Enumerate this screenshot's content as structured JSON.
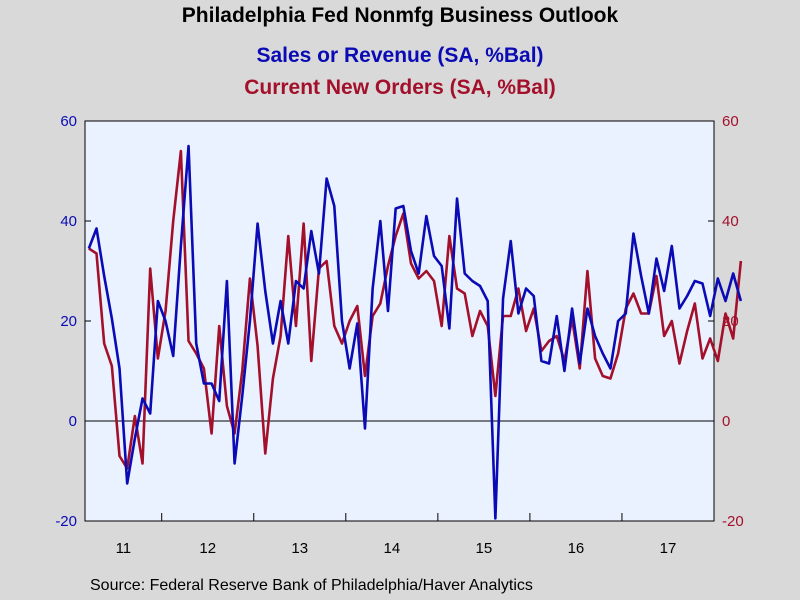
{
  "chart_data": {
    "type": "line",
    "title": "Philadelphia Fed Nonmfg Business Outlook",
    "subtitle_1": "Sales or Revenue (SA, %Bal)",
    "subtitle_2": "Current New Orders (SA, %Bal)",
    "source": "Source:  Federal Reserve Bank of Philadelphia/Haver Analytics",
    "ylim": [
      -20,
      60
    ],
    "yticks_left": [
      "60",
      "40",
      "20",
      "0",
      "-20"
    ],
    "yticks_right": [
      "60",
      "40",
      "20",
      "0",
      "-20"
    ],
    "ytick_values": [
      60,
      40,
      20,
      0,
      -20
    ],
    "x_start": "2011-03",
    "x_end": "2017-12",
    "year_labels": [
      "11",
      "12",
      "13",
      "14",
      "15",
      "16",
      "17"
    ],
    "grid": false,
    "zero_line": true,
    "colors": {
      "sales": "#0b0bb5",
      "orders": "#a3102b",
      "plot_bg": "#ebf2ff",
      "page_bg": "#d9d9d9"
    },
    "series": [
      {
        "name": "Sales or Revenue (SA, %Bal)",
        "color": "#0b0bb5",
        "values": [
          34.5,
          38.5,
          29,
          20.5,
          10.5,
          -12.5,
          -3.5,
          4.5,
          1.5,
          24,
          20,
          13,
          35,
          55,
          15.5,
          7.5,
          7.5,
          4,
          28,
          -8.5,
          5,
          20,
          39.5,
          26,
          15.5,
          24,
          15.5,
          28,
          26.5,
          38,
          29.5,
          48.5,
          43,
          20,
          10.5,
          19.5,
          -1.5,
          26.5,
          40,
          22,
          42.5,
          43,
          34,
          29.5,
          41,
          33,
          31,
          18.5,
          44.5,
          29.5,
          28,
          27,
          24,
          -19.5,
          24.5,
          36,
          21.5,
          26.5,
          25,
          12,
          11.5,
          21,
          10,
          22.5,
          11.5,
          22.5,
          17,
          13.5,
          10.5,
          20,
          21.5,
          37.5,
          29,
          21.5,
          32.5,
          26,
          35,
          22.5,
          25,
          28,
          27.5,
          21,
          28.5,
          24,
          29.5,
          24
        ]
      },
      {
        "name": "Current New Orders (SA, %Bal)",
        "color": "#a3102b",
        "values": [
          34.5,
          33.5,
          15.5,
          11,
          -7,
          -9.5,
          1,
          -8.5,
          30.5,
          12.5,
          22,
          40,
          54,
          16,
          13.5,
          10.5,
          -2.5,
          19,
          3,
          -2.5,
          10,
          28.5,
          15,
          -6.5,
          8.5,
          17,
          37,
          19,
          39.5,
          12,
          30.5,
          32,
          19,
          15.5,
          20,
          23,
          9,
          21,
          23.5,
          31,
          37,
          41.5,
          31.5,
          28.5,
          30,
          28,
          19,
          37,
          26.5,
          25.5,
          17,
          22,
          19,
          5,
          21,
          21,
          26.5,
          18,
          22.5,
          14,
          16,
          17,
          12,
          20.5,
          10.5,
          30,
          12.5,
          9,
          8.5,
          13.5,
          22.5,
          25.5,
          21.5,
          21.5,
          29,
          17,
          20,
          11.5,
          18,
          23.5,
          12.5,
          16.5,
          12,
          21.5,
          16.5,
          32
        ]
      }
    ]
  }
}
